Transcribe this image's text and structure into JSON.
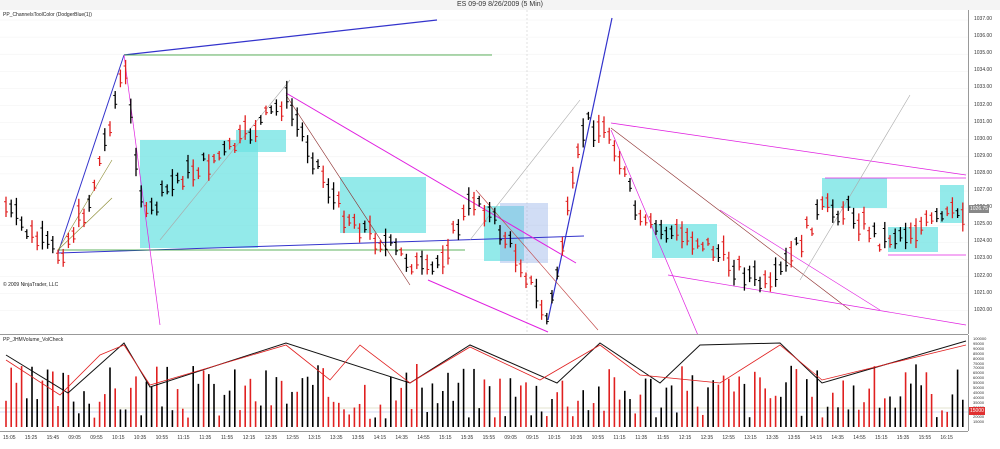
{
  "window": {
    "title": "ES 09-09  8/26/2009 (5 Min)"
  },
  "price_panel": {
    "indicator_label": "PP_ChannelsToolColor (DodgerBlue(1))",
    "copyright": "© 2009 NinjaTrader, LLC",
    "current_price": "1026.75",
    "current_price_color": "#888888",
    "price_ticks": [
      "1037.00",
      "1036.00",
      "1035.00",
      "1034.00",
      "1033.00",
      "1032.00",
      "1031.00",
      "1030.00",
      "1029.00",
      "1028.00",
      "1027.00",
      "1026.00",
      "1025.00",
      "1024.00",
      "1023.00",
      "1022.00",
      "1021.00",
      "1020.00"
    ]
  },
  "volume_panel": {
    "indicator_label": "PP_JHMVolume_VolCheck",
    "current_volume": "15000",
    "current_volume_color": "#e03030",
    "volume_ticks": [
      "100000",
      "95000",
      "90000",
      "85000",
      "80000",
      "75000",
      "70000",
      "65000",
      "60000",
      "55000",
      "50000",
      "45000",
      "40000",
      "35000",
      "30000",
      "25000",
      "20000",
      "15000"
    ]
  },
  "time_axis": {
    "ticks": [
      "15:05",
      "15:25",
      "15:45",
      "09:05",
      "09:55",
      "10:15",
      "10:35",
      "10:55",
      "11:15",
      "11:35",
      "11:55",
      "12:15",
      "12:35",
      "12:55",
      "13:15",
      "13:35",
      "13:55",
      "14:15",
      "14:35",
      "14:55",
      "15:15",
      "15:35",
      "15:55",
      "09:05",
      "09:15",
      "10:15",
      "10:35",
      "10:55",
      "11:15",
      "11:35",
      "11:55",
      "12:15",
      "12:35",
      "12:55",
      "13:15",
      "13:35",
      "13:55",
      "14:15",
      "14:35",
      "14:55",
      "15:15",
      "15:35",
      "15:55",
      "16:15"
    ]
  },
  "colors": {
    "up_bar": "#000000",
    "down_bar": "#e02020",
    "channel_box": "#6fe3e3",
    "channel_line": "#3333cc",
    "magenta_line": "#e020e0",
    "green_line": "#2a9a2a"
  }
}
